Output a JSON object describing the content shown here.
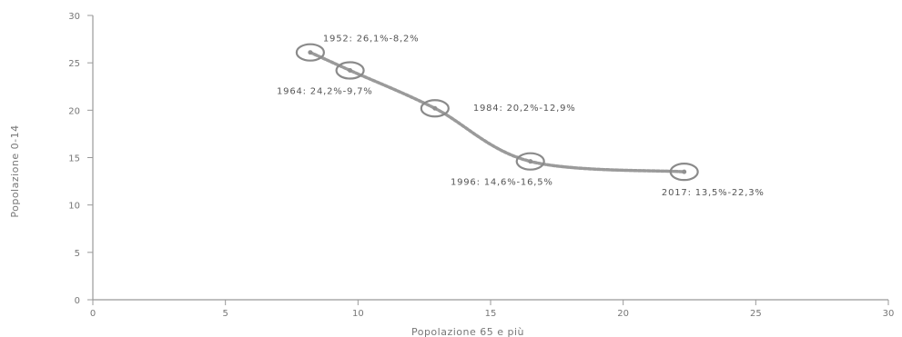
{
  "chart_data": {
    "type": "line",
    "title": "",
    "xlabel": "Popolazione 65 e più",
    "ylabel": "Popolazione 0-14",
    "xlim": [
      0,
      30
    ],
    "ylim": [
      0,
      30
    ],
    "x_ticks": [
      0,
      5,
      10,
      15,
      20,
      25,
      30
    ],
    "y_ticks": [
      0,
      5,
      10,
      15,
      20,
      25,
      30
    ],
    "grid": false,
    "legend": "none",
    "series": [
      {
        "color": "#9a9a9a",
        "points": [
          {
            "x": 8.2,
            "y": 26.1,
            "label": "1952: 26,1%-8,2%"
          },
          {
            "x": 9.7,
            "y": 24.2,
            "label": "1964: 24,2%-9,7%"
          },
          {
            "x": 12.9,
            "y": 20.2,
            "label": "1984: 20,2%-12,9%"
          },
          {
            "x": 16.5,
            "y": 14.6,
            "label": "1996: 14,6%-16,5%"
          },
          {
            "x": 22.3,
            "y": 13.5,
            "label": "2017: 13,5%-22,3%"
          }
        ]
      }
    ],
    "label_placement": [
      "above-right",
      "below-left",
      "right",
      "below-left",
      "below-right"
    ]
  }
}
